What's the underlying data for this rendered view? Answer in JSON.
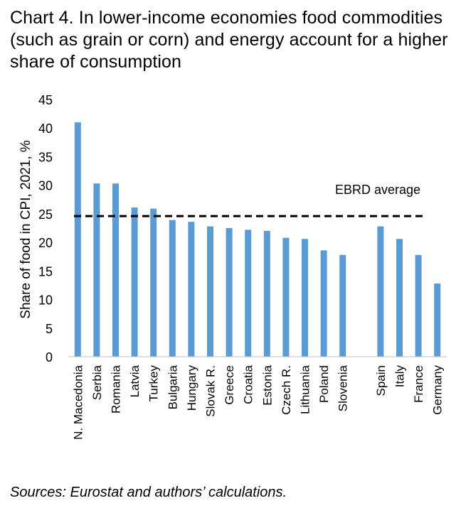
{
  "title": "Chart 4. In lower-income economies food commodities (such as grain or corn) and energy account for a higher share of consumption",
  "source": "Sources: Eurostat and authors’ calculations.",
  "chart_data": {
    "type": "bar",
    "categories": [
      "N. Macedonia",
      "Serbia",
      "Romania",
      "Latvia",
      "Turkey",
      "Bulgaria",
      "Hungary",
      "Slovak R.",
      "Greece",
      "Croatia",
      "Estonia",
      "Czech R.",
      "Lithuania",
      "Poland",
      "Slovenia",
      "",
      "Spain",
      "Italy",
      "France",
      "Germany"
    ],
    "values": [
      41,
      30.3,
      30.3,
      26.1,
      25.9,
      23.9,
      23.6,
      22.8,
      22.5,
      22.2,
      22.0,
      20.8,
      20.6,
      18.6,
      17.8,
      null,
      22.8,
      20.6,
      17.8,
      12.8
    ],
    "ylabel": "Share of food in CPI, 2021, %",
    "xlabel": "",
    "ylim": [
      0,
      45
    ],
    "yticks": [
      0,
      5,
      10,
      15,
      20,
      25,
      30,
      35,
      40,
      45
    ],
    "reference_line": {
      "label": "EBRD average",
      "value": 24.6,
      "style": "dashed"
    },
    "grid": false,
    "legend": "none",
    "colors": {
      "bar": "#5b9bd5",
      "reference": "#000000",
      "axis": "#bfbfbf"
    }
  }
}
